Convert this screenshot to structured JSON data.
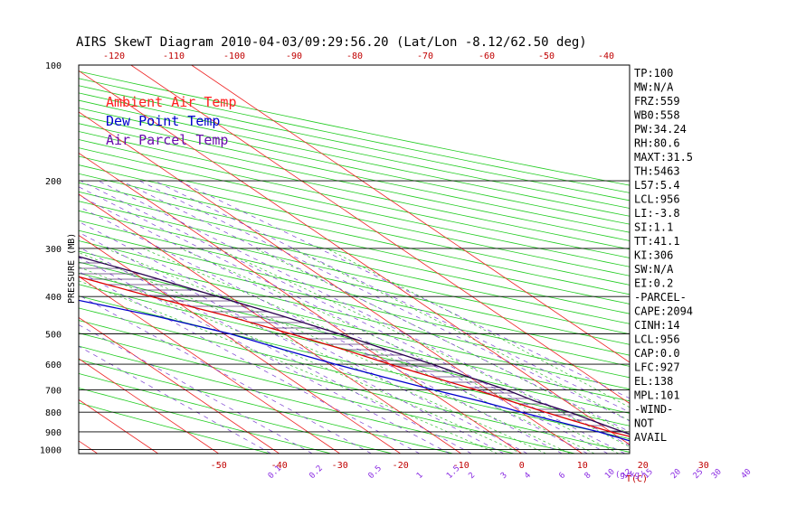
{
  "chart_data": {
    "type": "skew-t",
    "title": "AIRS SkewT Diagram 2010-04-03/09:29:56.20 (Lat/Lon -8.12/62.50 deg)",
    "ylabel": "PRESSURE (MB)",
    "pressure_ticks": [
      100,
      200,
      300,
      400,
      500,
      600,
      700,
      800,
      900,
      1000
    ],
    "top_temp_ticks": [
      -120,
      -110,
      -100,
      -90,
      -80,
      -70,
      -60,
      -50,
      -40
    ],
    "bottom_temp_ticks": [
      -50,
      -40,
      -30,
      -20,
      -10,
      0,
      10,
      20,
      30
    ],
    "bottom_temp_label": "T(C)",
    "mixing_ratio_ticks": [
      "0.1",
      "0.2",
      "0.5",
      "1",
      "1.5",
      "2",
      "3",
      "4",
      "6",
      "8",
      "10",
      "12",
      "15",
      "20",
      "25",
      "30",
      "40"
    ],
    "mixing_ratio_label": "(g/kg)",
    "legend": [
      {
        "name": "Ambient Air Temp",
        "color": "#ff2020"
      },
      {
        "name": "Dew Point Temp",
        "color": "#0000cc"
      },
      {
        "name": "Air Parcel Temp",
        "color": "#6a0dad"
      }
    ],
    "series": [
      {
        "name": "Ambient Air Temp",
        "color": "#dd0000",
        "points": [
          [
            100,
            -83
          ],
          [
            150,
            -70
          ],
          [
            200,
            -60
          ],
          [
            250,
            -50
          ],
          [
            300,
            -40
          ],
          [
            350,
            -31
          ],
          [
            400,
            -23
          ],
          [
            450,
            -15
          ],
          [
            500,
            -9
          ],
          [
            550,
            -4
          ],
          [
            600,
            0
          ],
          [
            650,
            4
          ],
          [
            700,
            8
          ],
          [
            750,
            11
          ],
          [
            800,
            14
          ],
          [
            850,
            17
          ],
          [
            900,
            20
          ],
          [
            950,
            24
          ],
          [
            1000,
            28
          ]
        ]
      },
      {
        "name": "Dew Point Temp",
        "color": "#0000cc",
        "points": [
          [
            100,
            -93
          ],
          [
            150,
            -92
          ],
          [
            200,
            -88
          ],
          [
            250,
            -82
          ],
          [
            300,
            -67
          ],
          [
            350,
            -52
          ],
          [
            400,
            -38
          ],
          [
            450,
            -27
          ],
          [
            500,
            -19
          ],
          [
            550,
            -14
          ],
          [
            600,
            -9
          ],
          [
            650,
            -4
          ],
          [
            700,
            1
          ],
          [
            750,
            6
          ],
          [
            800,
            10
          ],
          [
            850,
            14
          ],
          [
            900,
            18
          ],
          [
            950,
            21
          ],
          [
            1000,
            24
          ]
        ]
      },
      {
        "name": "Air Parcel Temp",
        "color": "#2a0050",
        "points": [
          [
            100,
            -84
          ],
          [
            150,
            -64
          ],
          [
            200,
            -50
          ],
          [
            250,
            -38
          ],
          [
            300,
            -28
          ],
          [
            350,
            -19
          ],
          [
            400,
            -12
          ],
          [
            450,
            -6
          ],
          [
            500,
            -1
          ],
          [
            550,
            3
          ],
          [
            600,
            7
          ],
          [
            650,
            10
          ],
          [
            700,
            13
          ],
          [
            750,
            15
          ],
          [
            800,
            18
          ],
          [
            850,
            20
          ],
          [
            900,
            22
          ],
          [
            950,
            24
          ],
          [
            1000,
            28
          ]
        ]
      }
    ],
    "grid": true
  },
  "stats": [
    "TP:100",
    "MW:N/A",
    "FRZ:559",
    "WB0:558",
    "PW:34.24",
    "RH:80.6",
    "MAXT:31.5",
    "TH:5463",
    "L57:5.4",
    "LCL:956",
    "LI:-3.8",
    "SI:1.1",
    "TT:41.1",
    "KI:306",
    "SW:N/A",
    "EI:0.2",
    "-PARCEL-",
    "CAPE:2094",
    "CINH:14",
    "LCL:956",
    "CAP:0.0",
    "LFC:927",
    "EL:138",
    "MPL:101",
    "-WIND-",
    "NOT",
    "AVAIL"
  ]
}
